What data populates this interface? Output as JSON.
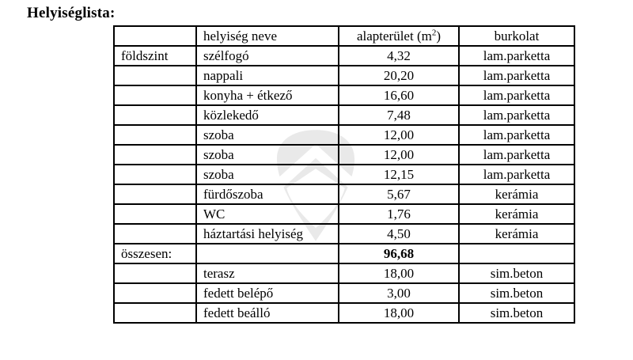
{
  "page": {
    "title": "Helyiséglista:"
  },
  "watermark": {
    "icon": "house-shield-watermark",
    "color": "#e9e9e9"
  },
  "table": {
    "header": {
      "floor": "",
      "name": "helyiség neve",
      "area_pre": "alapterület (m",
      "area_sup": "2",
      "area_post": ")",
      "flooring": "burkolat"
    },
    "rows": [
      {
        "floor": "földszint",
        "name": "szélfogó",
        "area": "4,32",
        "flooring": "lam.parketta",
        "bold": false
      },
      {
        "floor": "",
        "name": "nappali",
        "area": "20,20",
        "flooring": "lam.parketta",
        "bold": false
      },
      {
        "floor": "",
        "name": "konyha + étkező",
        "area": "16,60",
        "flooring": "lam.parketta",
        "bold": false
      },
      {
        "floor": "",
        "name": "közlekedő",
        "area": "7,48",
        "flooring": "lam.parketta",
        "bold": false
      },
      {
        "floor": "",
        "name": "szoba",
        "area": "12,00",
        "flooring": "lam.parketta",
        "bold": false
      },
      {
        "floor": "",
        "name": "szoba",
        "area": "12,00",
        "flooring": "lam.parketta",
        "bold": false
      },
      {
        "floor": "",
        "name": "szoba",
        "area": "12,15",
        "flooring": "lam.parketta",
        "bold": false
      },
      {
        "floor": "",
        "name": "fürdőszoba",
        "area": "5,67",
        "flooring": "kerámia",
        "bold": false
      },
      {
        "floor": "",
        "name": "WC",
        "area": "1,76",
        "flooring": "kerámia",
        "bold": false
      },
      {
        "floor": "",
        "name": "háztartási helyiség",
        "area": "4,50",
        "flooring": "kerámia",
        "bold": false
      },
      {
        "floor": "összesen:",
        "name": "",
        "area": "96,68",
        "flooring": "",
        "bold": true
      },
      {
        "floor": "",
        "name": "terasz",
        "area": "18,00",
        "flooring": "sim.beton",
        "bold": false
      },
      {
        "floor": "",
        "name": "fedett belépő",
        "area": "3,00",
        "flooring": "sim.beton",
        "bold": false
      },
      {
        "floor": "",
        "name": "fedett beálló",
        "area": "18,00",
        "flooring": "sim.beton",
        "bold": false
      }
    ]
  }
}
